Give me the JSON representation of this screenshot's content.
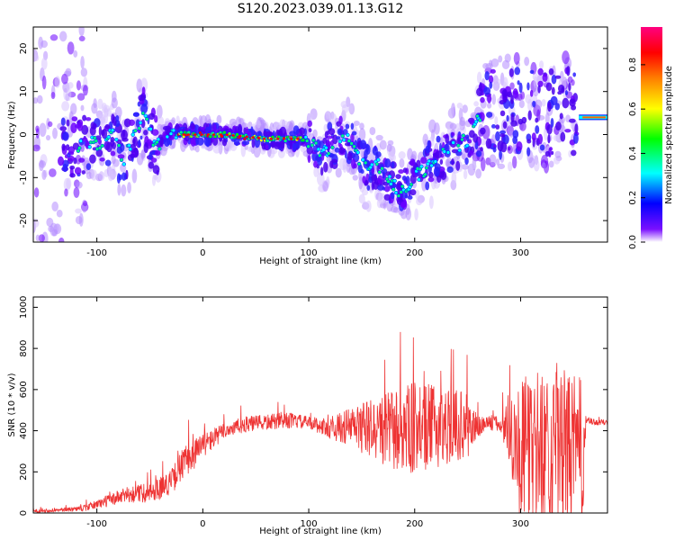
{
  "title": "S120.2023.039.01.13.G12",
  "chart_data": [
    {
      "type": "heatmap",
      "xlabel": "Height of straight line (km)",
      "ylabel": "Frequency (Hz)",
      "xlim": [
        -160,
        382
      ],
      "ylim": [
        -25,
        25
      ],
      "xticks": [
        "-100",
        "0",
        "100",
        "200",
        "300"
      ],
      "xtick_values": [
        -100,
        0,
        100,
        200,
        300
      ],
      "yticks": [
        "20",
        "10",
        "0",
        "-10",
        "-20"
      ],
      "ytick_values": [
        20,
        10,
        0,
        -10,
        -20
      ],
      "colorbar": {
        "label": "Normalized spectral amplitude",
        "ticks": [
          "0.0",
          "0.2",
          "0.4",
          "0.6",
          "0.8"
        ],
        "tick_values": [
          0.0,
          0.2,
          0.4,
          0.6,
          0.8
        ],
        "range": [
          0,
          0.97
        ],
        "colormap": [
          "#ffffff",
          "#6a00ff",
          "#0000ff",
          "#00ffff",
          "#00ff00",
          "#ffff00",
          "#ff8000",
          "#ff0000",
          "#ff0080"
        ]
      },
      "ridge": {
        "x": [
          -120,
          -100,
          -85,
          -75,
          -65,
          -55,
          -45,
          -35,
          -25,
          -15,
          0,
          20,
          40,
          60,
          80,
          95,
          105,
          115,
          125,
          135,
          145,
          155,
          165,
          175,
          185,
          195,
          205,
          215,
          225,
          235,
          245,
          255,
          262
        ],
        "y": [
          -3,
          -2,
          0,
          -6,
          0,
          4,
          -3,
          0,
          0,
          0,
          0,
          0,
          -0.5,
          -1,
          -1,
          -1,
          -3,
          -4,
          -2,
          0,
          -5,
          -8,
          -7,
          -10,
          -13,
          -11,
          -9,
          -7,
          -5,
          -3,
          -2,
          0,
          5
        ]
      },
      "tone": {
        "x_start": 355,
        "x_end": 382,
        "frequency": 4
      }
    },
    {
      "type": "line",
      "xlabel": "Height of straight line (km)",
      "ylabel": "SNR (10 * v/v)",
      "xlim": [
        -160,
        382
      ],
      "ylim": [
        0,
        1050
      ],
      "xticks": [
        "-100",
        "0",
        "100",
        "200",
        "300"
      ],
      "xtick_values": [
        -100,
        0,
        100,
        200,
        300
      ],
      "yticks": [
        "0",
        "200",
        "400",
        "600",
        "800",
        "1000"
      ],
      "ytick_values": [
        0,
        200,
        400,
        600,
        800,
        1000
      ],
      "series": [
        {
          "color": "#ee3333",
          "envelope": {
            "x": [
              -160,
              -130,
              -110,
              -90,
              -70,
              -50,
              -30,
              -20,
              -10,
              0,
              10,
              20,
              40,
              60,
              80,
              100,
              120,
              140,
              160,
              180,
              200,
              220,
              240,
              250,
              260,
              270,
              280,
              290,
              300,
              320,
              340,
              360,
              362,
              370,
              382
            ],
            "mean": [
              10,
              15,
              25,
              60,
              90,
              100,
              150,
              230,
              280,
              330,
              360,
              400,
              430,
              440,
              450,
              440,
              410,
              420,
              410,
              400,
              410,
              420,
              430,
              420,
              420,
              440,
              430,
              420,
              300,
              310,
              320,
              300,
              450,
              440,
              440
            ],
            "spread": [
              8,
              10,
              15,
              30,
              40,
              50,
              60,
              80,
              80,
              60,
              50,
              40,
              40,
              40,
              40,
              30,
              50,
              100,
              150,
              200,
              230,
              200,
              180,
              160,
              60,
              40,
              40,
              200,
              350,
              400,
              380,
              350,
              20,
              15,
              15
            ]
          }
        }
      ]
    }
  ]
}
